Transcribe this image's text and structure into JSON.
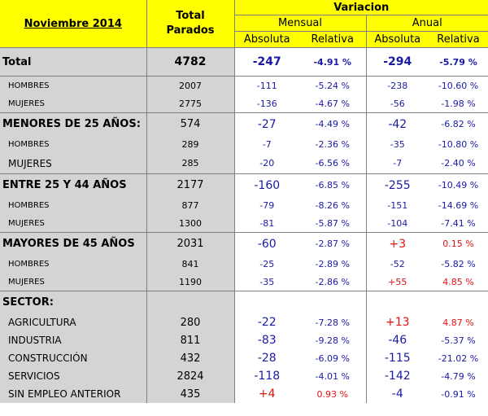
{
  "header": {
    "title": "Noviembre 2014",
    "total_line1": "Total",
    "total_line2": "Parados",
    "variacion": "Variacion",
    "mensual": "Mensual",
    "anual": "Anual",
    "absoluta": "Absoluta",
    "relativa": "Relativa"
  },
  "colors": {
    "header_bg": "#ffff00",
    "label_bg": "#d4d4d4",
    "negative_text": "#1a1aa6",
    "positive_text": "#e01010"
  },
  "rows": [
    {
      "label": "Total",
      "total": "4782",
      "m_abs": "-247",
      "m_rel": "-4.91 %",
      "a_abs": "-294",
      "a_rel": "-5.79 %"
    },
    {
      "label": "HOMBRES",
      "total": "2007",
      "m_abs": "-111",
      "m_rel": "-5.24 %",
      "a_abs": "-238",
      "a_rel": "-10.60 %"
    },
    {
      "label": "MUJERES",
      "total": "2775",
      "m_abs": "-136",
      "m_rel": "-4.67 %",
      "a_abs": "-56",
      "a_rel": "-1.98 %"
    },
    {
      "label": "MENORES DE 25 AÑOS:",
      "total": "574",
      "m_abs": "-27",
      "m_rel": "-4.49 %",
      "a_abs": "-42",
      "a_rel": "-6.82 %"
    },
    {
      "label": "HOMBRES",
      "total": "289",
      "m_abs": "-7",
      "m_rel": "-2.36 %",
      "a_abs": "-35",
      "a_rel": "-10.80 %"
    },
    {
      "label": "MUJERES",
      "total": "285",
      "m_abs": "-20",
      "m_rel": "-6.56 %",
      "a_abs": "-7",
      "a_rel": "-2.40 %"
    },
    {
      "label": "ENTRE 25 Y 44 AÑOS",
      "total": "2177",
      "m_abs": "-160",
      "m_rel": "-6.85 %",
      "a_abs": "-255",
      "a_rel": "-10.49 %"
    },
    {
      "label": "HOMBRES",
      "total": "877",
      "m_abs": "-79",
      "m_rel": "-8.26 %",
      "a_abs": "-151",
      "a_rel": "-14.69 %"
    },
    {
      "label": "MUJERES",
      "total": "1300",
      "m_abs": "-81",
      "m_rel": "-5.87 %",
      "a_abs": "-104",
      "a_rel": "-7.41 %"
    },
    {
      "label": "MAYORES DE 45 AÑOS",
      "total": "2031",
      "m_abs": "-60",
      "m_rel": "-2.87 %",
      "a_abs": "+3",
      "a_rel": "0.15 %"
    },
    {
      "label": "HOMBRES",
      "total": "841",
      "m_abs": "-25",
      "m_rel": "-2.89 %",
      "a_abs": "-52",
      "a_rel": "-5.82 %"
    },
    {
      "label": "MUJERES",
      "total": "1190",
      "m_abs": "-35",
      "m_rel": "-2.86 %",
      "a_abs": "+55",
      "a_rel": "4.85 %"
    },
    {
      "label": "SECTOR:"
    },
    {
      "label": "AGRICULTURA",
      "total": "280",
      "m_abs": "-22",
      "m_rel": "-7.28 %",
      "a_abs": "+13",
      "a_rel": "4.87 %"
    },
    {
      "label": "INDUSTRIA",
      "total": "811",
      "m_abs": "-83",
      "m_rel": "-9.28 %",
      "a_abs": "-46",
      "a_rel": "-5.37 %"
    },
    {
      "label": "CONSTRUCCIÓN",
      "total": "432",
      "m_abs": "-28",
      "m_rel": "-6.09 %",
      "a_abs": "-115",
      "a_rel": "-21.02 %"
    },
    {
      "label": "SERVICIOS",
      "total": "2824",
      "m_abs": "-118",
      "m_rel": "-4.01 %",
      "a_abs": "-142",
      "a_rel": "-4.79 %"
    },
    {
      "label": "SIN EMPLEO ANTERIOR",
      "total": "435",
      "m_abs": "+4",
      "m_rel": "0.93 %",
      "a_abs": "-4",
      "a_rel": "-0.91 %"
    }
  ]
}
